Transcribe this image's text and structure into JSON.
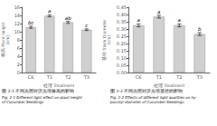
{
  "chart_data": [
    {
      "type": "bar",
      "title": "图 2-1 不同光照对沃光培株高的影响",
      "subtitle": "Fig. 2-1 Different light effect on plant height\nof Cucumber Seedlings",
      "xlabel": "处理 Treatment",
      "ylabel": "株高 Plant height\n(cm)",
      "categories": [
        "CK",
        "T1",
        "T2",
        "T3"
      ],
      "values": [
        11.1,
        13.9,
        12.3,
        10.5
      ],
      "errors": [
        0.25,
        0.25,
        0.25,
        0.2
      ],
      "annotations": [
        "bc",
        "a",
        "ab",
        "c"
      ],
      "color": "#d0d0d0",
      "ylim": [
        0,
        16
      ],
      "yticks": [
        0,
        2,
        4,
        6,
        8,
        10,
        12,
        14,
        16
      ],
      "grid": false
    },
    {
      "type": "bar",
      "title": "图 2-2 不同光照对沃光培茎径的影响",
      "subtitle": "Fig. 2-2 Effects of different light qualities on hy-\npocotyl diameter of Cucumber Seedlings",
      "xlabel": "处理 Treatment",
      "ylabel": "茎径 Stem Diameter\n(cm)",
      "categories": [
        "CK",
        "T1",
        "T2",
        "T3"
      ],
      "values": [
        0.325,
        0.385,
        0.325,
        0.265
      ],
      "errors": [
        0.01,
        0.01,
        0.01,
        0.01
      ],
      "annotations": [
        "a",
        "a",
        "a",
        "b"
      ],
      "color": "#d0d0d0",
      "ylim": [
        0,
        0.45
      ],
      "yticks": [
        {
          "value": 0,
          "label": "0.00"
        },
        0.05,
        {
          "value": 0.1,
          "label": "0.10"
        },
        0.15,
        {
          "value": 0.2,
          "label": "0.20"
        },
        0.25,
        {
          "value": 0.3,
          "label": "0.30"
        },
        0.35,
        {
          "value": 0.4,
          "label": "0.40"
        },
        0.45
      ],
      "grid": false
    }
  ]
}
